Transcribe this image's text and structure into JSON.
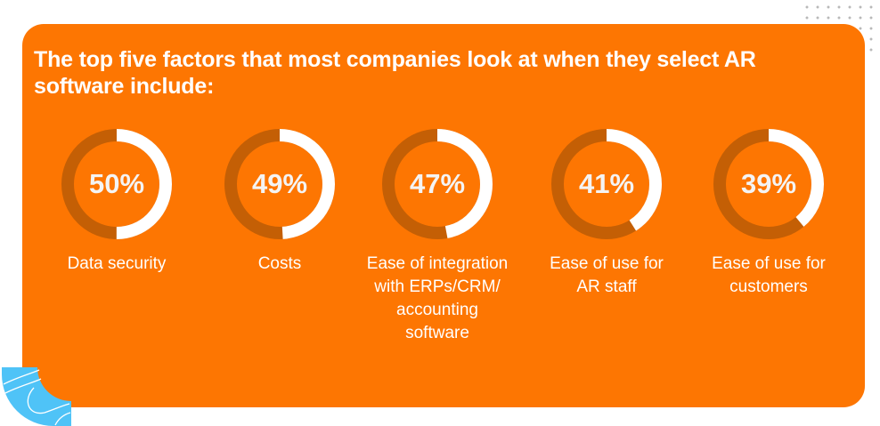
{
  "title": "The top five factors that most companies look at when they select AR software include:",
  "colors": {
    "background": "#fd7602",
    "track": "#c45f05",
    "progress": "#ffffff",
    "accent_blue": "#4fc3f7"
  },
  "chart_data": {
    "type": "donut",
    "title": "The top five factors that most companies look at when they select AR software include:",
    "categories": [
      "Data security",
      "Costs",
      "Ease of integration with ERPs/CRM/ accounting software",
      "Ease of use for AR staff",
      "Ease of use for customers"
    ],
    "values": [
      50,
      49,
      47,
      41,
      39
    ],
    "unit": "%"
  },
  "items": [
    {
      "value": 50,
      "pct_label": "50%",
      "label": "Data security"
    },
    {
      "value": 49,
      "pct_label": "49%",
      "label": "Costs"
    },
    {
      "value": 47,
      "pct_label": "47%",
      "label": "Ease of integration with ERPs/CRM/ accounting software"
    },
    {
      "value": 41,
      "pct_label": "41%",
      "label": "Ease of use for AR staff"
    },
    {
      "value": 39,
      "pct_label": "39%",
      "label": "Ease of use for customers"
    }
  ]
}
